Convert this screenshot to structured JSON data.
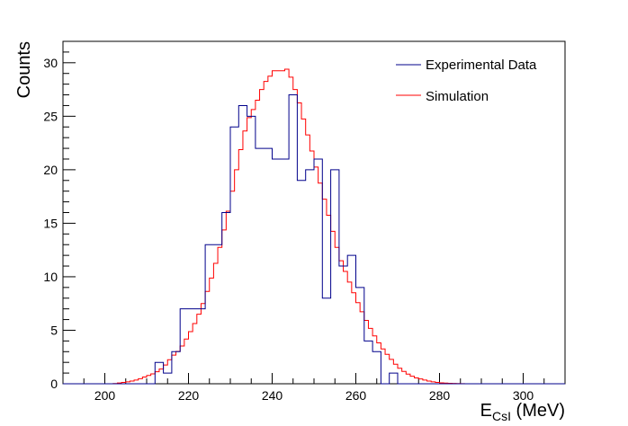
{
  "chart_data": {
    "type": "histogram",
    "xlabel": "E",
    "xlabel_subscript": "CsI",
    "xlabel_unit": " (MeV)",
    "ylabel": "Counts",
    "xlim": [
      190,
      310
    ],
    "ylim": [
      0,
      32
    ],
    "x_ticks": [
      200,
      220,
      240,
      260,
      280,
      300
    ],
    "y_ticks": [
      0,
      5,
      10,
      15,
      20,
      25,
      30
    ],
    "legend_position": "top-right",
    "series": [
      {
        "name": "Experimental Data",
        "color": "#00008b",
        "bin_edges": [
          190,
          192,
          194,
          196,
          198,
          200,
          202,
          204,
          206,
          208,
          210,
          212,
          214,
          216,
          218,
          220,
          222,
          224,
          226,
          228,
          230,
          232,
          234,
          236,
          238,
          240,
          242,
          244,
          246,
          248,
          250,
          252,
          254,
          256,
          258,
          260,
          262,
          264,
          266,
          268,
          270,
          272,
          274,
          276,
          278,
          280,
          282,
          284,
          286,
          288,
          290,
          292,
          294,
          296,
          298,
          300,
          302,
          304,
          306,
          308,
          310
        ],
        "counts": [
          0,
          0,
          0,
          0,
          0,
          0,
          0,
          0,
          0,
          0,
          0,
          2,
          1,
          3,
          7,
          7,
          7,
          13,
          13,
          16,
          24,
          26,
          25,
          22,
          22,
          21,
          21,
          27,
          19,
          20,
          21,
          8,
          20,
          11,
          12,
          9,
          4,
          3,
          0,
          1,
          0,
          0,
          0,
          0,
          0,
          0,
          0,
          0,
          0,
          0,
          0,
          0,
          0,
          0,
          0,
          0,
          0,
          0,
          0,
          0
        ]
      },
      {
        "name": "Simulation",
        "color": "#ff0000",
        "x": [
          200,
          202,
          204,
          206,
          208,
          210,
          212,
          214,
          216,
          218,
          220,
          222,
          224,
          226,
          228,
          230,
          232,
          234,
          236,
          238,
          240,
          241,
          242,
          243,
          244,
          245,
          246,
          247,
          248,
          250,
          252,
          254,
          256,
          258,
          260,
          262,
          264,
          266,
          268,
          270,
          272,
          274,
          276,
          278,
          280,
          282,
          284,
          286,
          288,
          290
        ],
        "y": [
          0,
          0,
          0.1,
          0.2,
          0.4,
          0.7,
          1.0,
          1.5,
          2.5,
          3.2,
          4.5,
          6.0,
          8.0,
          10.5,
          13.5,
          17.0,
          21.0,
          24.5,
          26.0,
          28.0,
          29.0,
          29.5,
          29.0,
          29.5,
          29.3,
          28.0,
          27.0,
          25.5,
          24.0,
          21.0,
          18.0,
          15.0,
          12.0,
          10.0,
          8.0,
          6.3,
          4.8,
          3.5,
          2.5,
          1.6,
          1.0,
          0.6,
          0.4,
          0.2,
          0.1,
          0.05,
          0.03,
          0,
          0,
          0
        ]
      }
    ]
  }
}
